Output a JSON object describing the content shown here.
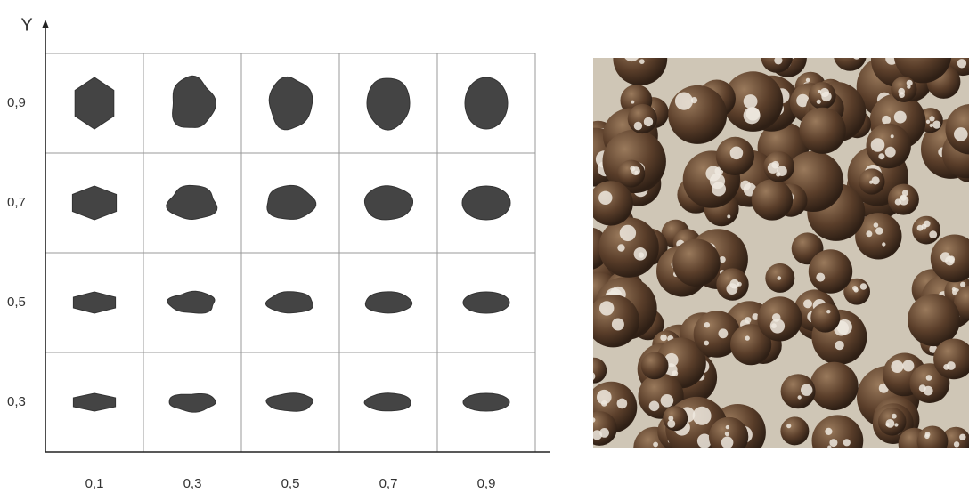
{
  "axis_label": "Y",
  "y_labels": [
    "0,9",
    "0,7",
    "0,5",
    "0,3"
  ],
  "x_labels": [
    "0,1",
    "0,3",
    "0,5",
    "0,7",
    "0,9"
  ]
}
